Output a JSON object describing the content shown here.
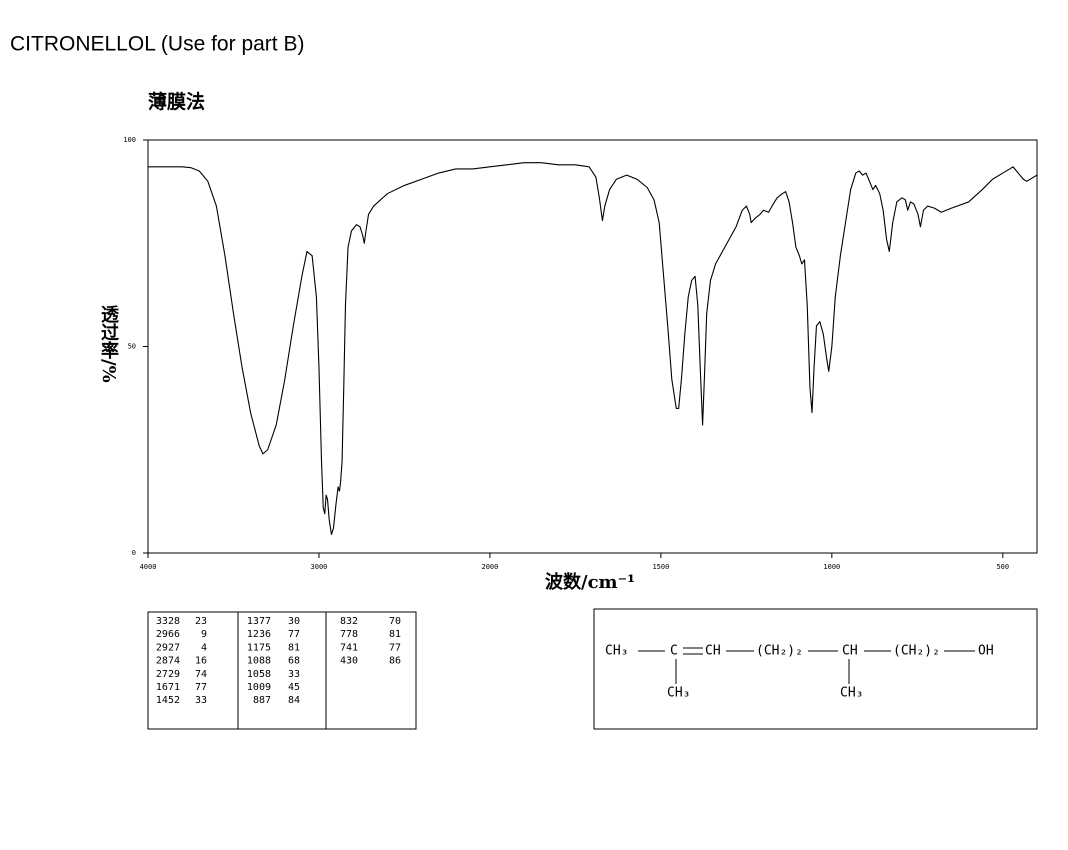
{
  "heading": "CITRONELLOL (Use for part B)",
  "chart_data": {
    "type": "line",
    "title": "薄膜法",
    "x_label": "波数/cm⁻¹",
    "y_label": "透过率/%",
    "xlim": [
      4000,
      400
    ],
    "x_scale_break": 2000,
    "xticks": [
      4000,
      3000,
      2000,
      1500,
      1000,
      500
    ],
    "ylim": [
      0,
      100
    ],
    "yticks": [
      0,
      50,
      100
    ],
    "color": "#000000",
    "x": [
      4000,
      3900,
      3800,
      3750,
      3700,
      3650,
      3600,
      3550,
      3500,
      3450,
      3400,
      3350,
      3328,
      3300,
      3250,
      3200,
      3150,
      3100,
      3070,
      3040,
      3015,
      3000,
      2985,
      2975,
      2966,
      2958,
      2950,
      2940,
      2927,
      2915,
      2900,
      2888,
      2880,
      2874,
      2865,
      2855,
      2845,
      2830,
      2810,
      2780,
      2760,
      2745,
      2735,
      2725,
      2710,
      2680,
      2600,
      2500,
      2400,
      2300,
      2200,
      2100,
      2000,
      1900,
      1850,
      1800,
      1750,
      1710,
      1690,
      1680,
      1671,
      1664,
      1650,
      1630,
      1600,
      1570,
      1540,
      1520,
      1505,
      1495,
      1480,
      1468,
      1455,
      1448,
      1440,
      1430,
      1420,
      1410,
      1400,
      1392,
      1385,
      1378,
      1372,
      1366,
      1355,
      1340,
      1320,
      1300,
      1280,
      1262,
      1250,
      1240,
      1236,
      1225,
      1210,
      1200,
      1185,
      1175,
      1160,
      1145,
      1135,
      1125,
      1115,
      1105,
      1095,
      1088,
      1080,
      1072,
      1064,
      1058,
      1052,
      1045,
      1035,
      1025,
      1015,
      1009,
      1000,
      990,
      975,
      960,
      945,
      930,
      920,
      910,
      900,
      890,
      880,
      872,
      860,
      850,
      840,
      832,
      822,
      810,
      795,
      785,
      778,
      770,
      760,
      748,
      741,
      732,
      720,
      700,
      680,
      650,
      600,
      560,
      530,
      500,
      480,
      470,
      455,
      440,
      430,
      420,
      410,
      400
    ],
    "values": [
      93.5,
      93.5,
      93.5,
      93.3,
      92.5,
      90,
      84,
      72,
      58,
      45,
      34,
      26,
      24,
      25,
      31,
      42,
      55,
      67,
      73,
      72,
      62,
      45,
      22,
      11,
      9.5,
      14,
      13,
      8,
      4.5,
      6,
      12,
      16,
      15,
      17,
      22,
      40,
      60,
      74,
      78,
      79.5,
      79,
      77,
      75,
      78,
      82,
      84,
      87,
      89,
      90.5,
      92,
      93,
      93,
      93.5,
      94.5,
      94.5,
      94,
      94,
      93.5,
      91,
      86,
      80.5,
      84,
      88,
      90.5,
      91.5,
      90.5,
      88.5,
      85.5,
      80,
      70,
      55,
      42,
      35,
      35,
      42,
      53,
      62,
      66,
      67,
      60,
      45,
      31,
      44,
      58,
      66,
      70,
      73,
      76,
      79,
      83,
      84,
      82,
      80,
      81,
      82,
      83,
      82.5,
      84,
      86,
      87,
      87.5,
      85,
      80,
      74,
      72,
      70,
      71,
      60,
      40,
      34,
      45,
      55,
      56,
      53,
      47,
      44,
      50,
      62,
      72,
      80,
      88,
      92,
      92.5,
      91.5,
      92,
      90,
      88,
      89,
      87,
      83,
      76,
      73,
      80,
      85,
      86,
      85.5,
      83,
      85,
      84.5,
      82,
      79,
      83,
      84,
      83.5,
      82.5,
      83.5,
      85,
      88,
      90.5,
      92,
      93,
      93.5,
      92,
      90.5,
      90,
      90.5,
      91,
      91.5
    ]
  },
  "peak_table": [
    [
      3328,
      23
    ],
    [
      2966,
      9
    ],
    [
      2927,
      4
    ],
    [
      2874,
      16
    ],
    [
      2729,
      74
    ],
    [
      1671,
      77
    ],
    [
      1452,
      33
    ],
    [
      1377,
      30
    ],
    [
      1236,
      77
    ],
    [
      1175,
      81
    ],
    [
      1088,
      68
    ],
    [
      1058,
      33
    ],
    [
      1009,
      45
    ],
    [
      887,
      84
    ],
    [
      832,
      70
    ],
    [
      778,
      81
    ],
    [
      741,
      77
    ],
    [
      430,
      86
    ]
  ],
  "structure": {
    "labels": [
      "CH₃",
      "C",
      "CH",
      "(CH₂)₂",
      "CH",
      "(CH₂)₂",
      "OH",
      "CH₃",
      "CH₃"
    ]
  }
}
